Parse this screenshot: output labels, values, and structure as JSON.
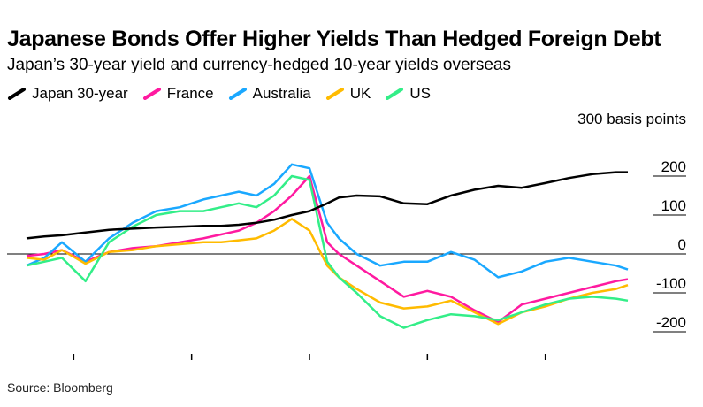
{
  "title": "Japanese Bonds Offer Higher Yields Than Hedged Foreign Debt",
  "subtitle": "Japan’s 30-year yield and currency-hedged 10-year yields overseas",
  "source": "Source: Bloomberg",
  "chart_data": {
    "type": "line",
    "title": "Japanese Bonds Offer Higher Yields Than Hedged Foreign Debt",
    "subtitle": "Japan’s 30-year yield and currency-hedged 10-year yields overseas",
    "ylabel": "300 basis points",
    "ylim": [
      -250,
      300
    ],
    "yticks": [
      -200,
      -100,
      0,
      100,
      200
    ],
    "ytick_labels": [
      "-200",
      "-100",
      "0",
      "100",
      "200"
    ],
    "y_axis_position": "right",
    "zero_line": true,
    "grid": false,
    "legend_position": "top-left",
    "x": [
      0,
      0.3,
      0.6,
      1.0,
      1.4,
      1.8,
      2.2,
      2.6,
      3.0,
      3.3,
      3.6,
      3.9,
      4.2,
      4.5,
      4.8,
      5.1,
      5.3,
      5.6,
      6.0,
      6.4,
      6.8,
      7.2,
      7.6,
      8.0,
      8.4,
      8.8,
      9.2,
      9.6,
      10.0,
      10.2
    ],
    "x_ticks": [
      0.8,
      2.8,
      4.8,
      6.8,
      8.8
    ],
    "series": [
      {
        "name": "Japan 30-year",
        "color": "#000000",
        "values": [
          40,
          45,
          48,
          55,
          62,
          65,
          68,
          70,
          72,
          72,
          75,
          80,
          88,
          100,
          110,
          130,
          145,
          150,
          148,
          130,
          128,
          150,
          165,
          175,
          170,
          182,
          195,
          205,
          210,
          210
        ]
      },
      {
        "name": "France",
        "color": "#ff1aa0",
        "values": [
          -5,
          0,
          10,
          -20,
          5,
          15,
          20,
          30,
          40,
          50,
          60,
          80,
          110,
          150,
          200,
          30,
          0,
          -30,
          -70,
          -110,
          -95,
          -110,
          -145,
          -175,
          -130,
          -115,
          -100,
          -85,
          -70,
          -65
        ]
      },
      {
        "name": "Australia",
        "color": "#1aa8ff",
        "values": [
          -30,
          -10,
          30,
          -20,
          40,
          80,
          110,
          120,
          140,
          150,
          160,
          150,
          180,
          230,
          220,
          80,
          40,
          0,
          -30,
          -20,
          -20,
          5,
          -15,
          -60,
          -45,
          -20,
          -10,
          -20,
          -30,
          -40
        ]
      },
      {
        "name": "UK",
        "color": "#ffbb00",
        "values": [
          -10,
          -15,
          10,
          -25,
          5,
          10,
          20,
          25,
          30,
          30,
          35,
          40,
          60,
          90,
          60,
          -30,
          -60,
          -90,
          -125,
          -140,
          -135,
          -120,
          -150,
          -180,
          -150,
          -135,
          -115,
          -100,
          -90,
          -80
        ]
      },
      {
        "name": "US",
        "color": "#33ee88",
        "values": [
          -30,
          -20,
          -10,
          -70,
          30,
          70,
          100,
          110,
          110,
          120,
          130,
          120,
          150,
          200,
          190,
          -20,
          -60,
          -100,
          -160,
          -190,
          -170,
          -155,
          -160,
          -170,
          -150,
          -130,
          -115,
          -110,
          -115,
          -120
        ]
      }
    ]
  }
}
